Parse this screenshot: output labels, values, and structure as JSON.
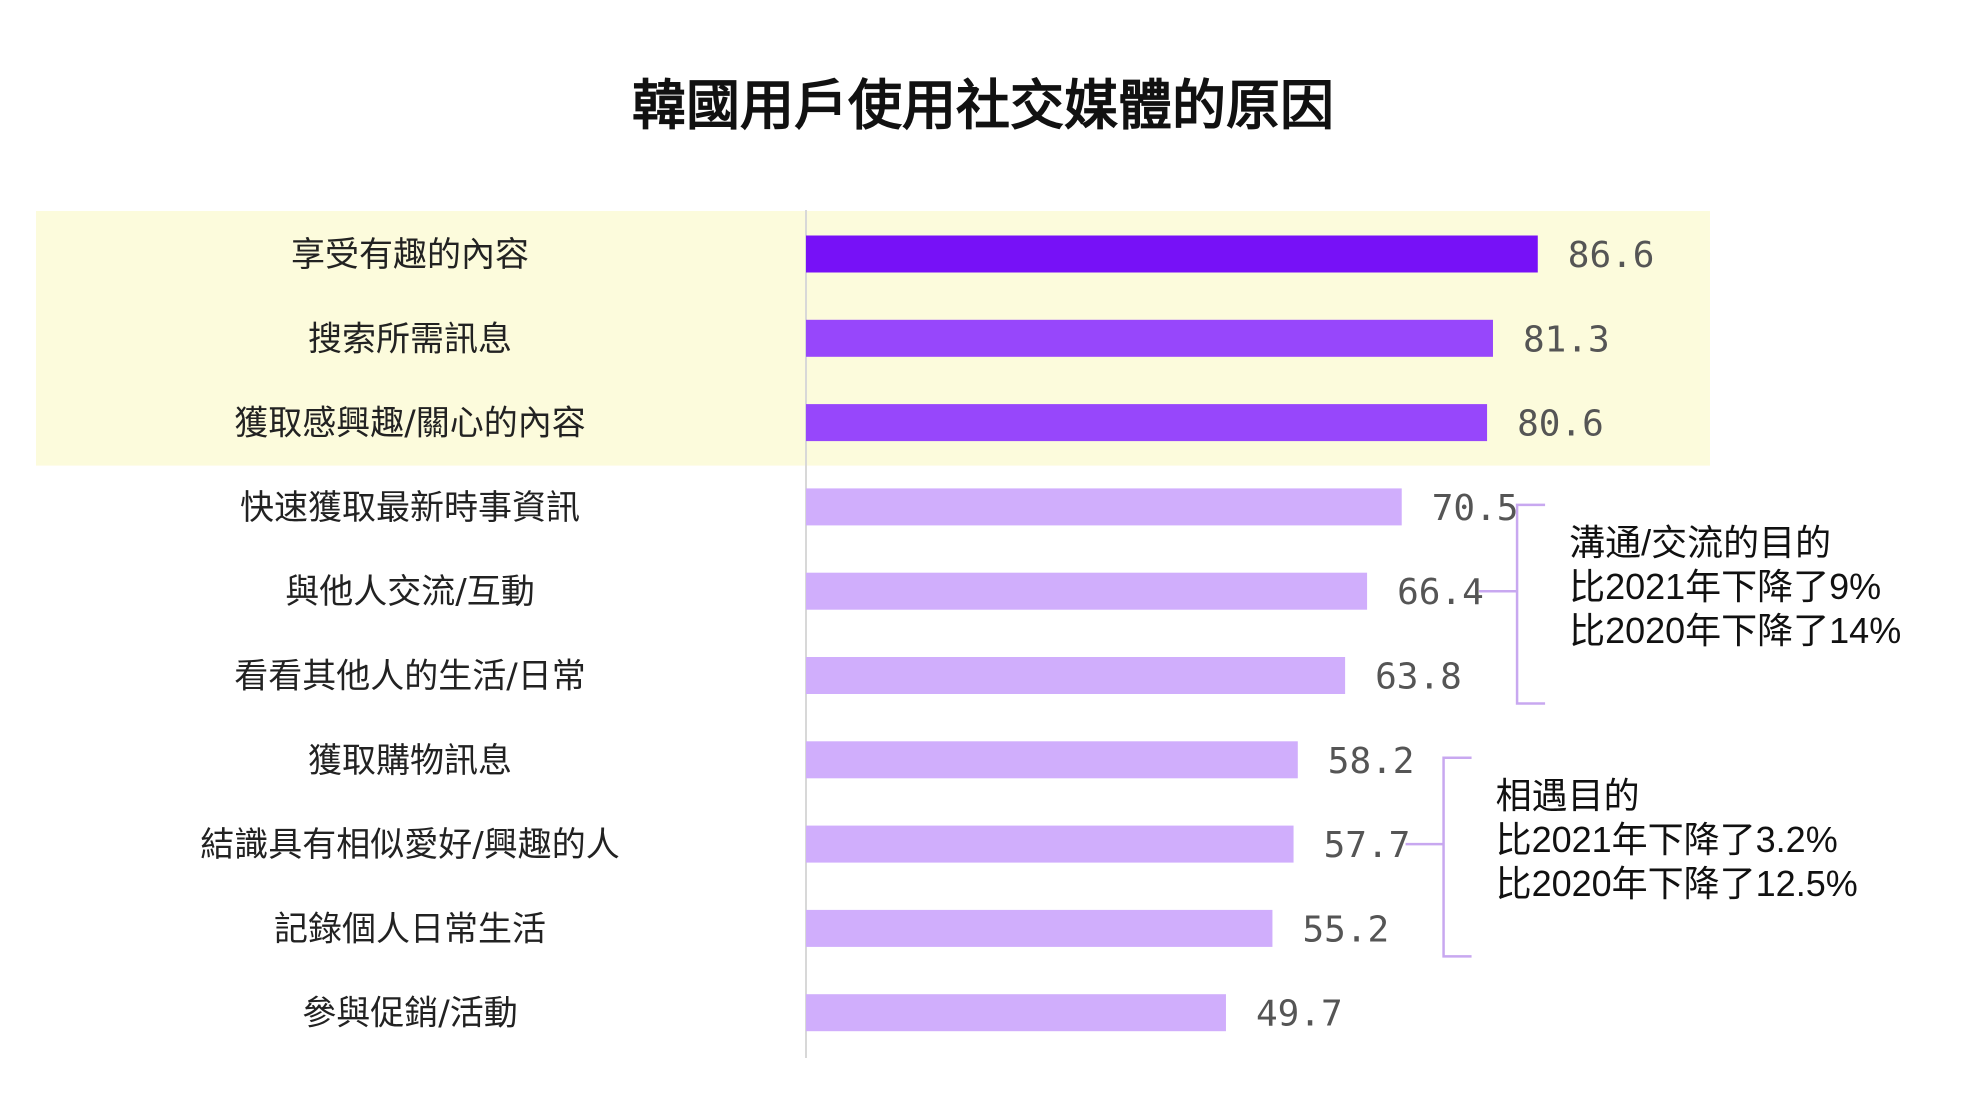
{
  "chart_data": {
    "type": "bar",
    "orientation": "horizontal",
    "title": "韓國用戶使用社交媒體的原因",
    "xlabel": "",
    "ylabel": "",
    "xlim": [
      0,
      100
    ],
    "grid": false,
    "legend": "none",
    "categories": [
      "享受有趣的內容",
      "搜索所需訊息",
      "獲取感興趣/關心的內容",
      "快速獲取最新時事資訊",
      "與他人交流/互動",
      "看看其他人的生活/日常",
      "獲取購物訊息",
      "結識具有相似愛好/興趣的人",
      "記錄個人日常生活",
      "參與促銷/活動"
    ],
    "values": [
      86.6,
      81.3,
      80.6,
      70.5,
      66.4,
      63.8,
      58.2,
      57.7,
      55.2,
      49.7
    ],
    "value_labels": [
      "86.6",
      "81.3",
      "80.6",
      "70.5",
      "66.4",
      "63.8",
      "58.2",
      "57.7",
      "55.2",
      "49.7"
    ],
    "bar_colors": [
      "#7711f7",
      "#9747fb",
      "#9747fb",
      "#d0aefc",
      "#d0aefc",
      "#d0aefc",
      "#d0aefc",
      "#d0aefc",
      "#d0aefc",
      "#d0aefc"
    ],
    "highlight_color": "#fcfbdc",
    "highlight_categories": [
      0,
      1,
      2
    ],
    "annotations": [
      {
        "group": [
          3,
          4,
          5
        ],
        "lines": [
          "溝通/交流的目的",
          "比2021年下降了9%",
          "比2020年下降了14%"
        ]
      },
      {
        "group": [
          6,
          7,
          8
        ],
        "lines": [
          "相遇目的",
          "比2021年下降了3.2%",
          "比2020年下降了12.5%"
        ]
      }
    ]
  },
  "colors": {
    "axis": "#d8d8d8",
    "bracket": "#c8a8f0",
    "title": "#111111",
    "label": "#222222",
    "value": "#555555"
  }
}
